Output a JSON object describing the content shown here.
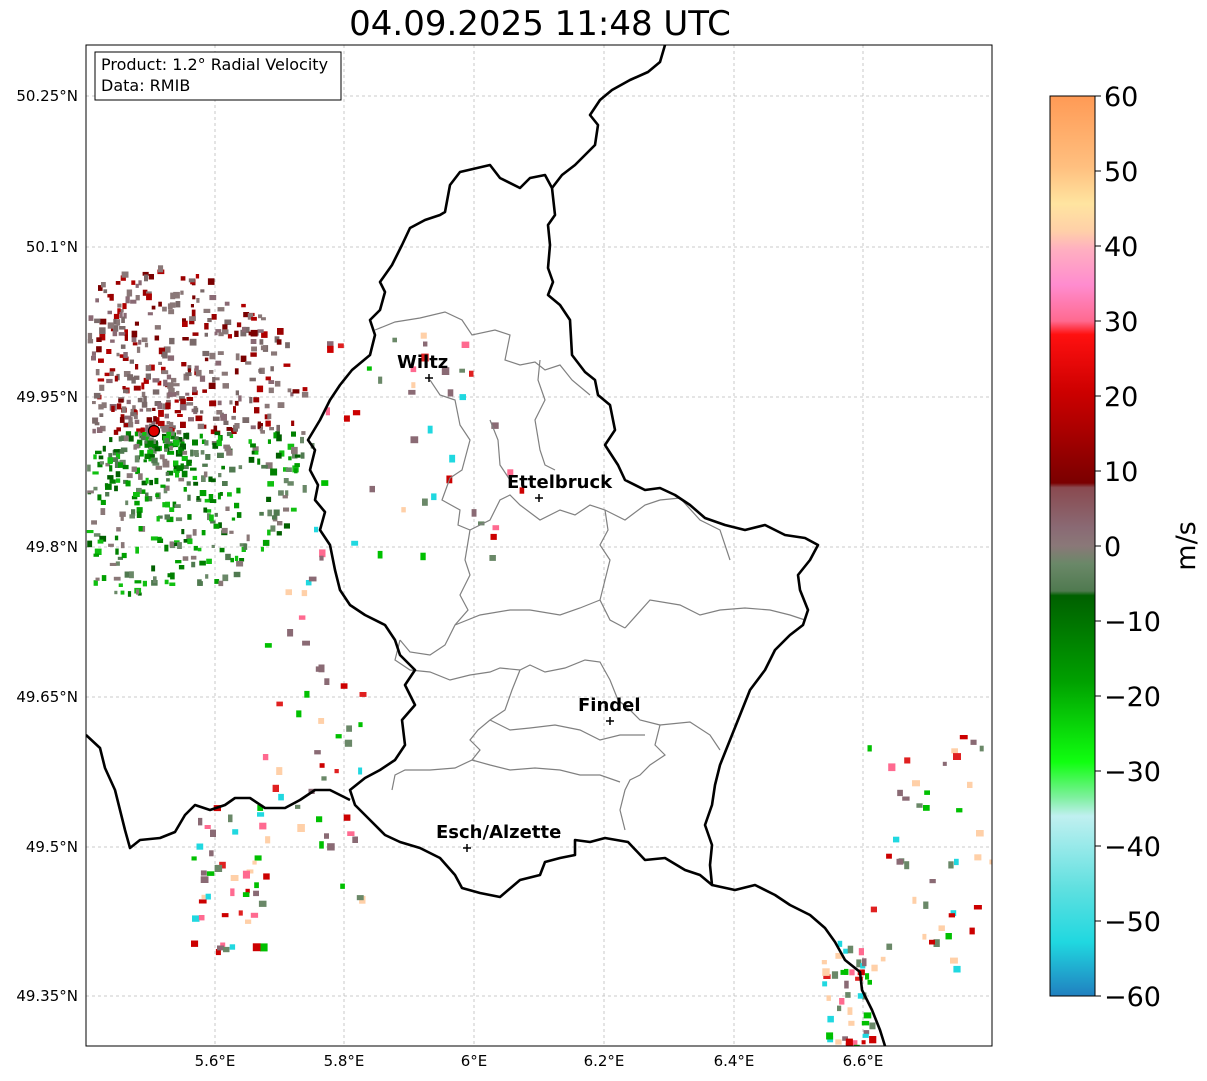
{
  "title": "04.09.2025 11:48 UTC",
  "info_box": {
    "product": "Product: 1.2° Radial Velocity",
    "data_source": "Data: RMIB"
  },
  "lat_labels": [
    "50.25°N",
    "50.1°N",
    "49.95°N",
    "49.8°N",
    "49.65°N",
    "49.5°N",
    "49.35°N"
  ],
  "lon_labels": [
    "5.6°E",
    "5.8°E",
    "6°E",
    "6.2°E",
    "6.4°E",
    "6.6°E"
  ],
  "cities": [
    {
      "name": "Wiltz"
    },
    {
      "name": "Ettelbruck"
    },
    {
      "name": "Findel"
    },
    {
      "name": "Esch/Alzette"
    }
  ],
  "colorbar": {
    "unit": "m/s",
    "ticks": [
      "60",
      "50",
      "40",
      "30",
      "20",
      "10",
      "0",
      "−10",
      "−20",
      "−30",
      "−40",
      "−50",
      "−60"
    ],
    "min": -60,
    "max": 60
  },
  "colors": {
    "border": "#000000",
    "cantons": "#808080",
    "grid": "#bbbbbb",
    "radar_site": "#e00000"
  }
}
